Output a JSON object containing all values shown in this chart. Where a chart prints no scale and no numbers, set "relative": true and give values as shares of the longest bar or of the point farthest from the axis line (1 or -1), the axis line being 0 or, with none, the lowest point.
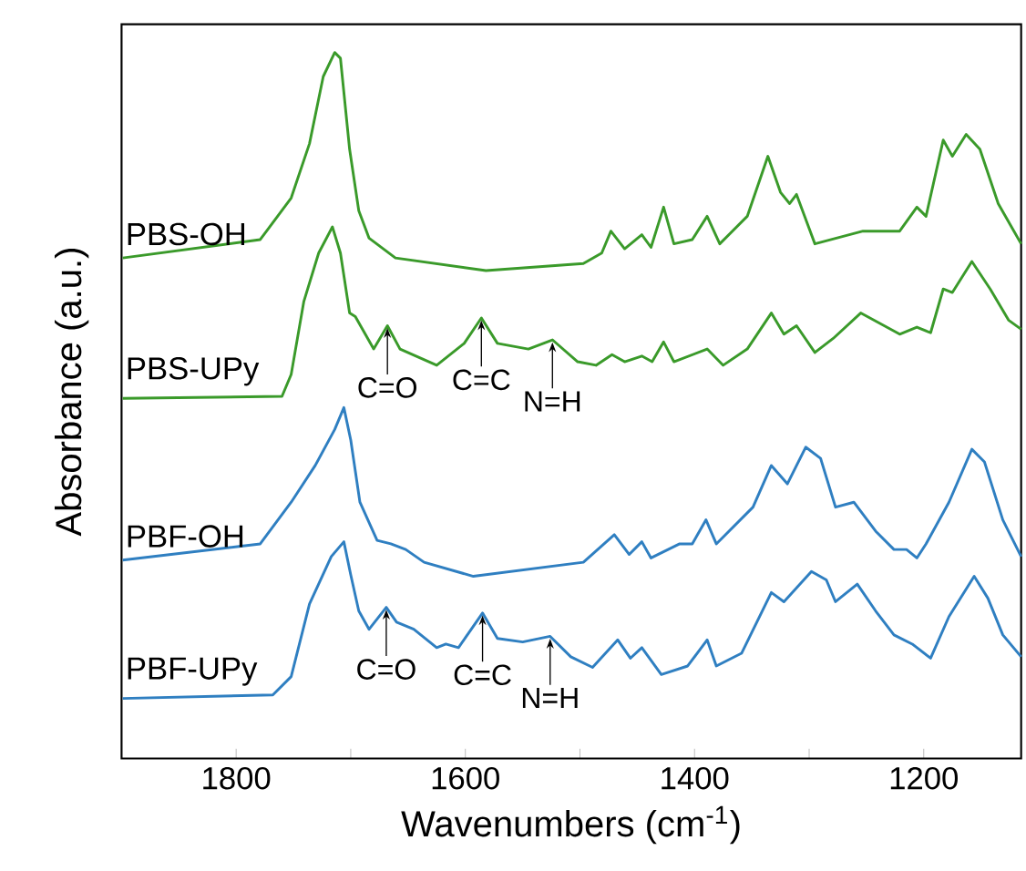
{
  "chart_data": {
    "type": "line",
    "relative": true,
    "xlabel": "Wavenumbers (cm$^{-1}$)",
    "ylabel": "Absorbance (a.u.)",
    "xlim": [
      1900,
      1115
    ],
    "xticks": [
      1800,
      1600,
      1400,
      1200,
      {
        "value": 1700,
        "label": null
      },
      {
        "value": 1500,
        "label": null
      },
      {
        "value": 1300,
        "label": null
      }
    ],
    "series": [
      {
        "name": "PBS-OH",
        "color": "#3a9a2a",
        "x": [
          1899,
          1779,
          1752,
          1736,
          1724,
          1714,
          1709,
          1701,
          1693,
          1684,
          1661,
          1582,
          1497,
          1481,
          1473,
          1461,
          1446,
          1438,
          1427,
          1418,
          1402,
          1389,
          1378,
          1354,
          1336,
          1325,
          1317,
          1311,
          1295,
          1253,
          1221,
          1206,
          1198,
          1183,
          1175,
          1163,
          1151,
          1135,
          1115
        ],
        "values": [
          0.709,
          0.735,
          0.794,
          0.871,
          0.966,
          1.0,
          0.992,
          0.863,
          0.776,
          0.737,
          0.709,
          0.691,
          0.701,
          0.716,
          0.747,
          0.722,
          0.742,
          0.724,
          0.781,
          0.729,
          0.735,
          0.768,
          0.729,
          0.768,
          0.853,
          0.802,
          0.786,
          0.799,
          0.729,
          0.747,
          0.747,
          0.781,
          0.768,
          0.876,
          0.853,
          0.884,
          0.863,
          0.786,
          0.729
        ]
      },
      {
        "name": "PBS-UPy",
        "color": "#3a9a2a",
        "x": [
          1899,
          1760,
          1752,
          1741,
          1728,
          1716,
          1709,
          1701,
          1696,
          1680,
          1668,
          1657,
          1625,
          1601,
          1586,
          1572,
          1545,
          1524,
          1502,
          1486,
          1472,
          1461,
          1446,
          1437,
          1427,
          1418,
          1389,
          1375,
          1354,
          1333,
          1322,
          1311,
          1295,
          1279,
          1255,
          1221,
          1206,
          1194,
          1183,
          1175,
          1158,
          1142,
          1126,
          1115
        ],
        "values": [
          0.51,
          0.513,
          0.544,
          0.647,
          0.716,
          0.753,
          0.716,
          0.631,
          0.626,
          0.58,
          0.613,
          0.58,
          0.557,
          0.588,
          0.624,
          0.588,
          0.58,
          0.593,
          0.562,
          0.557,
          0.572,
          0.562,
          0.57,
          0.562,
          0.59,
          0.562,
          0.58,
          0.557,
          0.58,
          0.631,
          0.601,
          0.613,
          0.575,
          0.595,
          0.631,
          0.601,
          0.611,
          0.603,
          0.665,
          0.66,
          0.704,
          0.665,
          0.621,
          0.608
        ]
      },
      {
        "name": "PBF-OH",
        "color": "#2f7fc1",
        "x": [
          1899,
          1779,
          1752,
          1731,
          1714,
          1706,
          1700,
          1692,
          1677,
          1665,
          1652,
          1636,
          1593,
          1497,
          1470,
          1457,
          1446,
          1438,
          1413,
          1402,
          1390,
          1381,
          1349,
          1333,
          1319,
          1303,
          1290,
          1277,
          1261,
          1242,
          1226,
          1215,
          1206,
          1198,
          1178,
          1158,
          1147,
          1131,
          1115
        ],
        "values": [
          0.281,
          0.304,
          0.363,
          0.415,
          0.466,
          0.497,
          0.451,
          0.363,
          0.309,
          0.304,
          0.296,
          0.278,
          0.258,
          0.278,
          0.317,
          0.289,
          0.307,
          0.284,
          0.304,
          0.304,
          0.338,
          0.304,
          0.356,
          0.415,
          0.389,
          0.441,
          0.425,
          0.356,
          0.363,
          0.322,
          0.296,
          0.296,
          0.284,
          0.304,
          0.363,
          0.438,
          0.42,
          0.338,
          0.286
        ]
      },
      {
        "name": "PBF-UPy",
        "color": "#2f7fc1",
        "x": [
          1899,
          1768,
          1752,
          1736,
          1717,
          1706,
          1700,
          1693,
          1684,
          1669,
          1660,
          1645,
          1625,
          1617,
          1606,
          1585,
          1572,
          1550,
          1526,
          1508,
          1489,
          1467,
          1456,
          1446,
          1429,
          1406,
          1389,
          1381,
          1359,
          1333,
          1322,
          1298,
          1285,
          1277,
          1258,
          1242,
          1226,
          1210,
          1194,
          1178,
          1156,
          1144,
          1131,
          1115
        ],
        "values": [
          0.085,
          0.09,
          0.116,
          0.219,
          0.286,
          0.307,
          0.26,
          0.209,
          0.183,
          0.214,
          0.193,
          0.183,
          0.157,
          0.162,
          0.157,
          0.206,
          0.17,
          0.165,
          0.173,
          0.144,
          0.129,
          0.168,
          0.142,
          0.157,
          0.119,
          0.131,
          0.168,
          0.131,
          0.149,
          0.235,
          0.222,
          0.265,
          0.253,
          0.222,
          0.247,
          0.209,
          0.175,
          0.162,
          0.142,
          0.201,
          0.258,
          0.227,
          0.175,
          0.144
        ]
      }
    ],
    "annotations": [
      {
        "text": "C=O",
        "x": 1668,
        "y": 0.613
      },
      {
        "text": "C=C",
        "x": 1586,
        "y": 0.624
      },
      {
        "text": "N=H",
        "x": 1524,
        "y": 0.593
      },
      {
        "text": "C=O",
        "x": 1669,
        "y": 0.214
      },
      {
        "text": "C=C",
        "x": 1585,
        "y": 0.206
      },
      {
        "text": "N=H",
        "x": 1526,
        "y": 0.173
      }
    ]
  }
}
